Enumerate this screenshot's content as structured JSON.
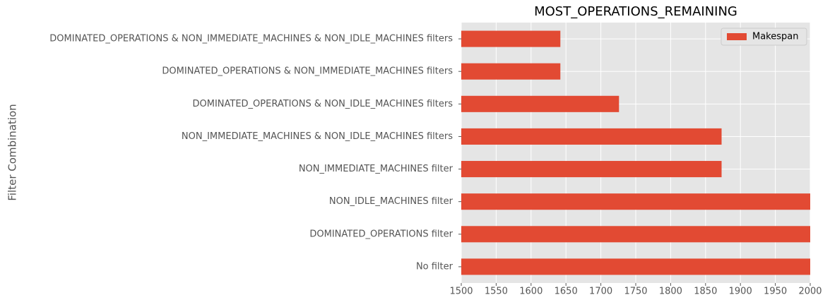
{
  "chart_data": {
    "type": "barh",
    "title": "MOST_OPERATIONS_REMAINING",
    "ylabel": "Filter Combination",
    "categories": [
      "DOMINATED_OPERATIONS & NON_IMMEDIATE_MACHINES & NON_IDLE_MACHINES filters",
      "DOMINATED_OPERATIONS & NON_IMMEDIATE_MACHINES filters",
      "DOMINATED_OPERATIONS & NON_IDLE_MACHINES filters",
      "NON_IMMEDIATE_MACHINES & NON_IDLE_MACHINES filters",
      "NON_IMMEDIATE_MACHINES filter",
      "NON_IDLE_MACHINES filter",
      "DOMINATED_OPERATIONS filter",
      "No filter"
    ],
    "series": [
      {
        "name": "Makespan",
        "color": "#e24a33",
        "values": [
          1642,
          1642,
          1726,
          1873,
          1873,
          2000,
          2000,
          2000
        ]
      }
    ],
    "xlim": [
      1500,
      2000
    ],
    "xticks": [
      1500,
      1550,
      1600,
      1650,
      1700,
      1750,
      1800,
      1850,
      1900,
      1950,
      2000
    ],
    "grid": true,
    "legend": "upper right"
  }
}
